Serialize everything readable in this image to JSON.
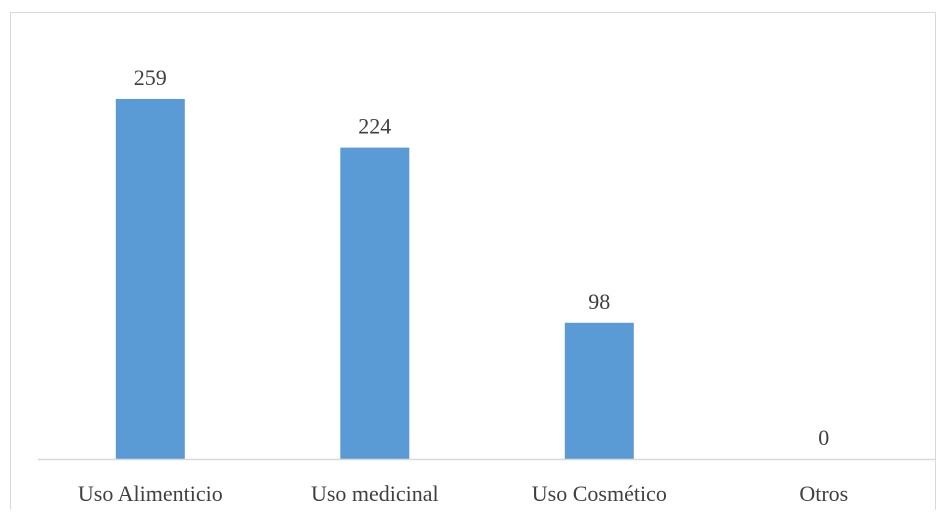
{
  "chart_data": {
    "type": "bar",
    "categories": [
      "Uso Alimenticio",
      "Uso medicinal",
      "Uso Cosmético",
      "Otros"
    ],
    "values": [
      259,
      224,
      98,
      0
    ],
    "data_labels": [
      "259",
      "224",
      "98",
      "0"
    ],
    "title": "",
    "xlabel": "",
    "ylabel": "",
    "ylim": [
      0,
      259
    ],
    "grid": false,
    "legend": "none",
    "colors": {
      "bar": "#5b9bd5",
      "axis": "#d9d9d9",
      "text": "#404040"
    }
  }
}
